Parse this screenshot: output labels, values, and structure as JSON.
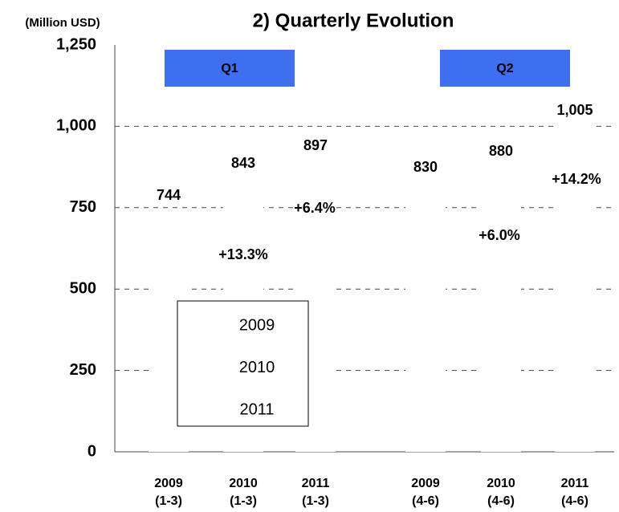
{
  "chart_data": {
    "type": "bar",
    "title": "2) Quarterly Evolution",
    "y_unit_label": "(Million USD)",
    "categories": [
      "Q1",
      "Q2"
    ],
    "bar_labels": [
      [
        [
          "2009",
          "(1-3)"
        ],
        [
          "2010",
          "(1-3)"
        ],
        [
          "2011",
          "(1-3)"
        ]
      ],
      [
        [
          "2009",
          "(4-6)"
        ],
        [
          "2010",
          "(4-6)"
        ],
        [
          "2011",
          "(4-6)"
        ]
      ]
    ],
    "series": [
      {
        "name": "2009",
        "color": "#ffffff",
        "values": [
          744,
          830
        ],
        "value_labels": [
          "744",
          "830"
        ]
      },
      {
        "name": "2010",
        "color": "#ffffff",
        "values": [
          843,
          880
        ],
        "value_labels": [
          "843",
          "880"
        ]
      },
      {
        "name": "2011",
        "color": "#ffffff",
        "values": [
          897,
          1005
        ],
        "value_labels": [
          "897",
          "1,005"
        ]
      }
    ],
    "annotations": [
      "+13.3%",
      "+6.4%",
      "+6.0%",
      "+14.2%"
    ],
    "ylim": [
      0,
      1250
    ],
    "yticks": [
      0,
      250,
      500,
      750,
      {
        "value": 1000,
        "label": "1,000"
      },
      {
        "value": 1250,
        "label": "1,250"
      }
    ],
    "grid": true,
    "group_box_color": "#3d6ff0",
    "title_color": "#3c3cb4"
  }
}
